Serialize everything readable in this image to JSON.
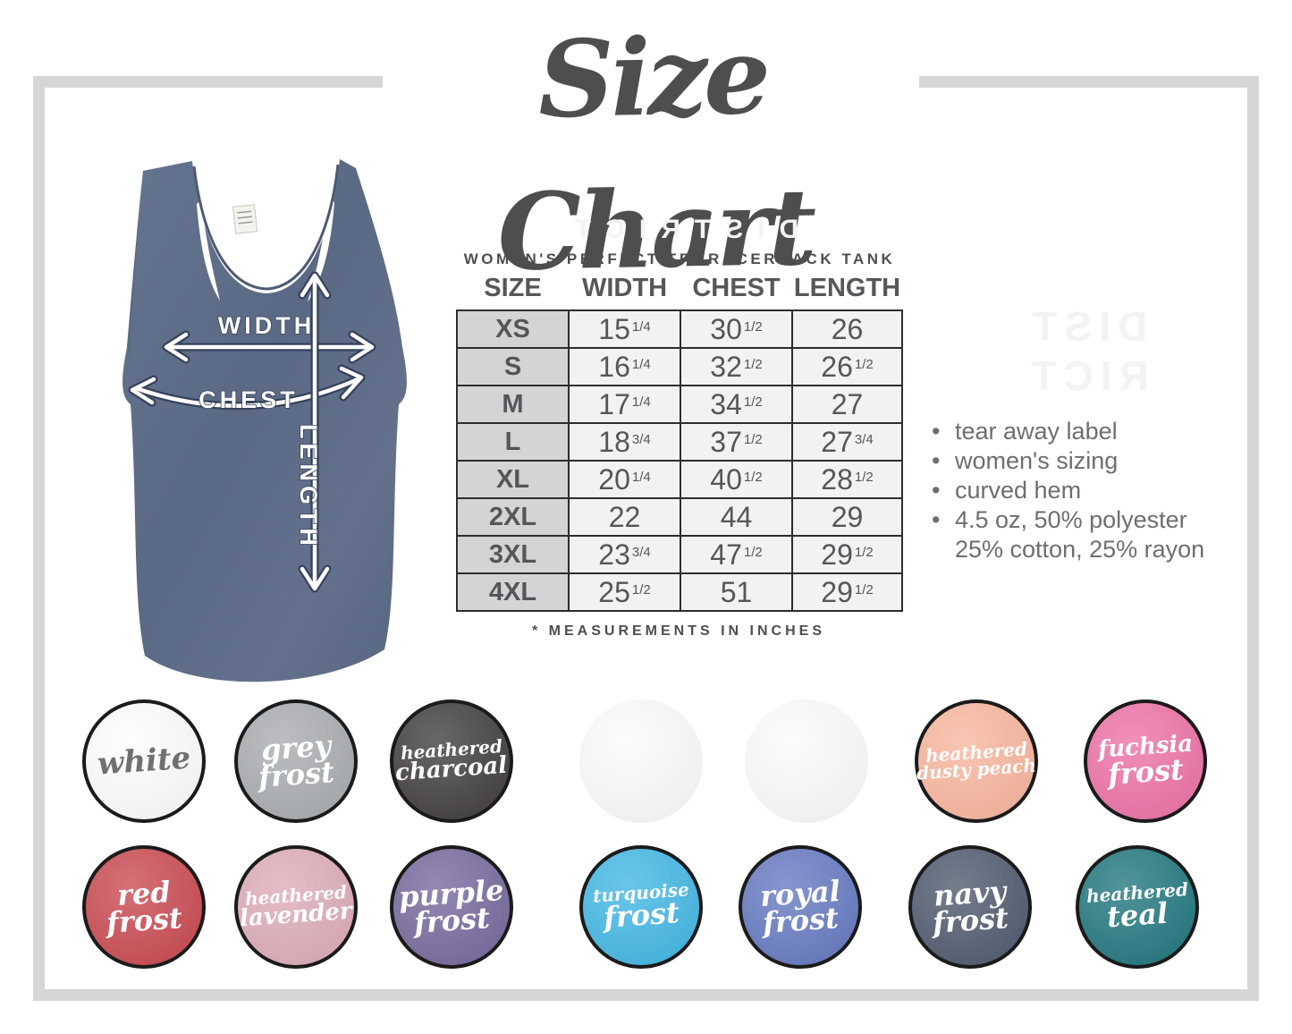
{
  "title": "Size Chart",
  "product_heading": "WOMEN'S PERFECT TRI RACERBACK TANK",
  "diagram": {
    "width_label": "WIDTH",
    "chest_label": "CHEST",
    "length_label": "LENGTH"
  },
  "watermark": {
    "top": "DISTRICT",
    "side_line1": "DIST",
    "side_line2": "RICT"
  },
  "chart_data": {
    "type": "table",
    "title": "WOMEN'S PERFECT TRI RACERBACK TANK",
    "columns": [
      "SIZE",
      "WIDTH",
      "CHEST",
      "LENGTH"
    ],
    "rows": [
      {
        "size": "XS",
        "width": "15 1/4",
        "chest": "30 1/2",
        "length": "26"
      },
      {
        "size": "S",
        "width": "16 1/4",
        "chest": "32 1/2",
        "length": "26 1/2"
      },
      {
        "size": "M",
        "width": "17 1/4",
        "chest": "34 1/2",
        "length": "27"
      },
      {
        "size": "L",
        "width": "18 3/4",
        "chest": "37 1/2",
        "length": "27 3/4"
      },
      {
        "size": "XL",
        "width": "20 1/4",
        "chest": "40 1/2",
        "length": "28 1/2"
      },
      {
        "size": "2XL",
        "width": "22",
        "chest": "44",
        "length": "29"
      },
      {
        "size": "3XL",
        "width": "23 3/4",
        "chest": "47 1/2",
        "length": "29 1/2"
      },
      {
        "size": "4XL",
        "width": "25 1/2",
        "chest": "51",
        "length": "29 1/2"
      }
    ],
    "footnote": "* MEASUREMENTS IN INCHES",
    "units": "inches"
  },
  "features": [
    [
      "tear away label"
    ],
    [
      "women's sizing"
    ],
    [
      "curved hem"
    ],
    [
      "4.5 oz, 50% polyester",
      "25% cotton, 25% rayon"
    ]
  ],
  "swatches": {
    "row1": [
      {
        "name": "white",
        "lines": [
          "white"
        ],
        "bg": "#fdfdfd",
        "text": "#6f7072",
        "border": true
      },
      {
        "name": "grey-frost",
        "lines": [
          "grey",
          "frost"
        ],
        "bg": "#a8abae",
        "text": "#ffffff",
        "border": true
      },
      {
        "name": "heathered-charcoal",
        "lines": [
          "heathered",
          "charcoal"
        ],
        "bg": "#403c3d",
        "text": "#ffffff",
        "border": true
      },
      {
        "name": "faint-swatch",
        "lines": [],
        "bg": "#fbfbfb",
        "text": "#f2f2f2",
        "border": false
      },
      {
        "name": "faint-swatch",
        "lines": [],
        "bg": "#fbfbfb",
        "text": "#f2f2f2",
        "border": false
      },
      {
        "name": "heathered-dusty-peach",
        "lines": [
          "heathered",
          "dusty peach"
        ],
        "bg": "#f7b59d",
        "text": "#ffffff",
        "border": true
      },
      {
        "name": "fuchsia-frost",
        "lines": [
          "fuchsia",
          "frost"
        ],
        "bg": "#ec70a6",
        "text": "#ffffff",
        "border": true
      }
    ],
    "row2": [
      {
        "name": "red-frost",
        "lines": [
          "red",
          "frost"
        ],
        "bg": "#c94850",
        "text": "#ffffff",
        "border": true
      },
      {
        "name": "heathered-lavender",
        "lines": [
          "heathered",
          "lavender"
        ],
        "bg": "#dcabb7",
        "text": "#ffffff",
        "border": true
      },
      {
        "name": "purple-frost",
        "lines": [
          "purple",
          "frost"
        ],
        "bg": "#75689c",
        "text": "#ffffff",
        "border": true
      },
      {
        "name": "turquoise-frost",
        "lines": [
          "turquoise",
          "frost"
        ],
        "bg": "#41b6e3",
        "text": "#ffffff",
        "border": true
      },
      {
        "name": "royal-frost",
        "lines": [
          "royal",
          "frost"
        ],
        "bg": "#6478c0",
        "text": "#ffffff",
        "border": true
      },
      {
        "name": "navy-frost",
        "lines": [
          "navy",
          "frost"
        ],
        "bg": "#4e596d",
        "text": "#ffffff",
        "border": true
      },
      {
        "name": "heathered-teal",
        "lines": [
          "heathered",
          "teal"
        ],
        "bg": "#1f767d",
        "text": "#ffffff",
        "border": true
      }
    ]
  },
  "colors": {
    "frame": "#d6d6d6",
    "title_text": "#4e4e4e",
    "table_text": "#55565a",
    "size_cell_bg": "#d2d4d5",
    "value_cell_bg": "#f1f2f2",
    "table_border": "#2e2c2d",
    "feature_text": "#6c6e71",
    "tank_fabric": "#5e6d89"
  }
}
